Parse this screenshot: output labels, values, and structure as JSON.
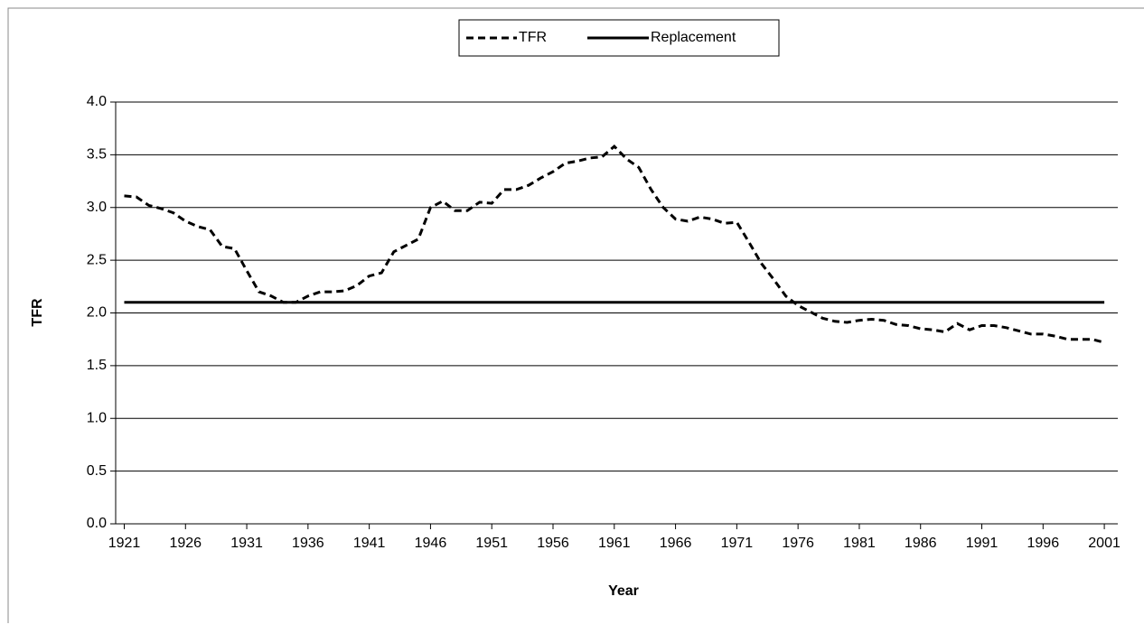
{
  "chart_data": {
    "type": "line",
    "y_label": "TFR",
    "x_label": "Year",
    "x": [
      1921,
      1922,
      1923,
      1924,
      1925,
      1926,
      1927,
      1928,
      1929,
      1930,
      1931,
      1932,
      1933,
      1934,
      1935,
      1936,
      1937,
      1938,
      1939,
      1940,
      1941,
      1942,
      1943,
      1944,
      1945,
      1946,
      1947,
      1948,
      1949,
      1950,
      1951,
      1952,
      1953,
      1954,
      1955,
      1956,
      1957,
      1958,
      1959,
      1960,
      1961,
      1962,
      1963,
      1964,
      1965,
      1966,
      1967,
      1968,
      1969,
      1970,
      1971,
      1972,
      1973,
      1974,
      1975,
      1976,
      1977,
      1978,
      1979,
      1980,
      1981,
      1982,
      1983,
      1984,
      1985,
      1986,
      1987,
      1988,
      1989,
      1990,
      1991,
      1992,
      1993,
      1994,
      1995,
      1996,
      1997,
      1998,
      1999,
      2000,
      2001
    ],
    "series": [
      {
        "name": "TFR",
        "color": "#000000",
        "dashed": true,
        "values": [
          3.11,
          3.1,
          3.02,
          2.99,
          2.95,
          2.87,
          2.82,
          2.79,
          2.63,
          2.61,
          2.4,
          2.2,
          2.16,
          2.1,
          2.1,
          2.16,
          2.2,
          2.2,
          2.21,
          2.26,
          2.35,
          2.38,
          2.58,
          2.64,
          2.7,
          3.0,
          3.06,
          2.97,
          2.97,
          3.05,
          3.04,
          3.17,
          3.17,
          3.21,
          3.28,
          3.34,
          3.42,
          3.44,
          3.47,
          3.48,
          3.58,
          3.46,
          3.38,
          3.17,
          3.0,
          2.89,
          2.87,
          2.91,
          2.89,
          2.85,
          2.86,
          2.67,
          2.47,
          2.32,
          2.16,
          2.07,
          2.01,
          1.95,
          1.92,
          1.91,
          1.93,
          1.94,
          1.93,
          1.89,
          1.88,
          1.85,
          1.84,
          1.82,
          1.9,
          1.84,
          1.88,
          1.88,
          1.86,
          1.83,
          1.8,
          1.8,
          1.78,
          1.75,
          1.75,
          1.75,
          1.72
        ]
      },
      {
        "name": "Replacement",
        "color": "#000000",
        "dashed": false,
        "values": [
          2.1,
          2.1,
          2.1,
          2.1,
          2.1,
          2.1,
          2.1,
          2.1,
          2.1,
          2.1,
          2.1,
          2.1,
          2.1,
          2.1,
          2.1,
          2.1,
          2.1,
          2.1,
          2.1,
          2.1,
          2.1,
          2.1,
          2.1,
          2.1,
          2.1,
          2.1,
          2.1,
          2.1,
          2.1,
          2.1,
          2.1,
          2.1,
          2.1,
          2.1,
          2.1,
          2.1,
          2.1,
          2.1,
          2.1,
          2.1,
          2.1,
          2.1,
          2.1,
          2.1,
          2.1,
          2.1,
          2.1,
          2.1,
          2.1,
          2.1,
          2.1,
          2.1,
          2.1,
          2.1,
          2.1,
          2.1,
          2.1,
          2.1,
          2.1,
          2.1,
          2.1,
          2.1,
          2.1,
          2.1,
          2.1,
          2.1,
          2.1,
          2.1,
          2.1,
          2.1,
          2.1,
          2.1,
          2.1,
          2.1,
          2.1,
          2.1,
          2.1,
          2.1,
          2.1,
          2.1,
          2.1
        ]
      }
    ],
    "xlim": [
      1920.3,
      2002.1
    ],
    "xticks": [
      1921,
      1926,
      1931,
      1936,
      1941,
      1946,
      1951,
      1956,
      1961,
      1966,
      1971,
      1976,
      1981,
      1986,
      1991,
      1996,
      2001
    ],
    "ylim": [
      0,
      4
    ],
    "yticks": [
      {
        "value": 0,
        "label": "0.0"
      },
      0.5,
      {
        "value": 1,
        "label": "1.0"
      },
      1.5,
      {
        "value": 2,
        "label": "2.0"
      },
      2.5,
      {
        "value": 3,
        "label": "3.0"
      },
      3.5,
      {
        "value": 4,
        "label": "4.0"
      }
    ],
    "grid": true,
    "legend": "top"
  }
}
